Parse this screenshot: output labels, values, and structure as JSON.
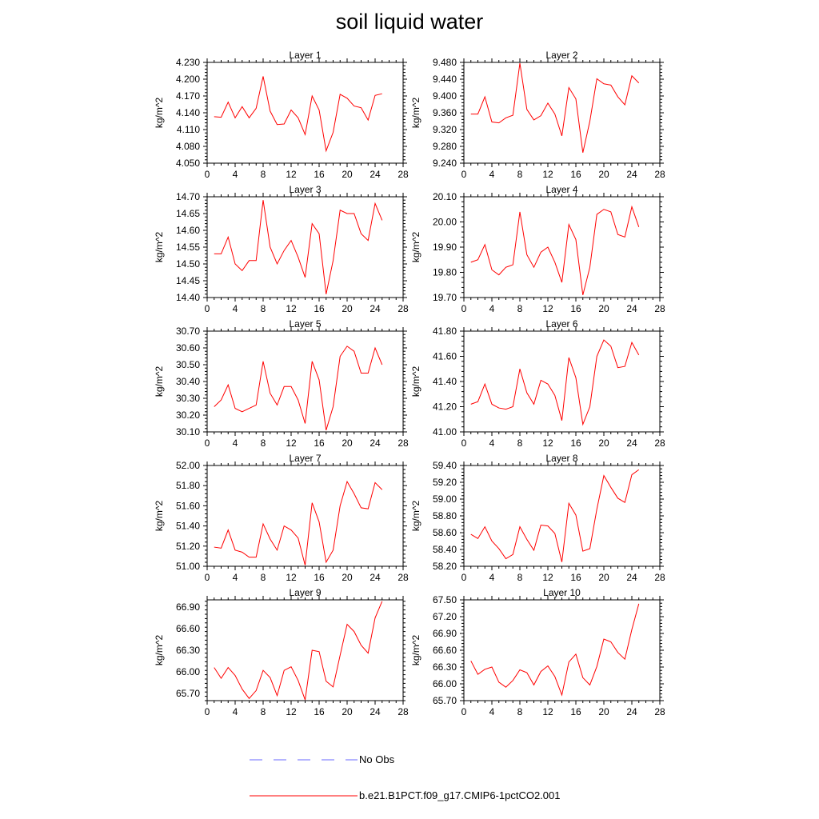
{
  "title": "soil liquid water",
  "legend": [
    {
      "label": "No Obs",
      "color": "#6a6aff",
      "style": "dashed"
    },
    {
      "label": "b.e21.B1PCT.f09_g17.CMIP6-1pctCO2.001",
      "color": "#ff0000",
      "style": "solid"
    }
  ],
  "chart_data": [
    {
      "type": "line",
      "title": "Layer 1",
      "ylabel": "kg/m^2",
      "xlim": [
        0,
        28
      ],
      "xticks": [
        0,
        4,
        8,
        12,
        16,
        20,
        24,
        28
      ],
      "ylim": [
        4.05,
        4.23
      ],
      "yticks": [
        "4.050",
        "4.080",
        "4.110",
        "4.140",
        "4.170",
        "4.200",
        "4.230"
      ],
      "series": [
        {
          "color": "#ff0000",
          "x": [
            1,
            2,
            3,
            4,
            5,
            6,
            7,
            8,
            9,
            10,
            11,
            12,
            13,
            14,
            15,
            16,
            17,
            18,
            19,
            20,
            21,
            22,
            23,
            24,
            25
          ],
          "y": [
            4.133,
            4.132,
            4.159,
            4.131,
            4.151,
            4.131,
            4.148,
            4.205,
            4.143,
            4.119,
            4.12,
            4.145,
            4.131,
            4.101,
            4.17,
            4.145,
            4.072,
            4.105,
            4.173,
            4.166,
            4.152,
            4.149,
            4.127,
            4.171,
            4.174
          ]
        }
      ]
    },
    {
      "type": "line",
      "title": "Layer 2",
      "ylabel": "kg/m^2",
      "xlim": [
        0,
        28
      ],
      "xticks": [
        0,
        4,
        8,
        12,
        16,
        20,
        24,
        28
      ],
      "ylim": [
        9.24,
        9.48
      ],
      "yticks": [
        "9.240",
        "9.280",
        "9.320",
        "9.360",
        "9.400",
        "9.440",
        "9.480"
      ],
      "series": [
        {
          "color": "#ff0000",
          "x": [
            1,
            2,
            3,
            4,
            5,
            6,
            7,
            8,
            9,
            10,
            11,
            12,
            13,
            14,
            15,
            16,
            17,
            18,
            19,
            20,
            21,
            22,
            23,
            24,
            25
          ],
          "y": [
            9.357,
            9.357,
            9.398,
            9.338,
            9.336,
            9.348,
            9.354,
            9.478,
            9.368,
            9.343,
            9.353,
            9.383,
            9.357,
            9.305,
            9.42,
            9.393,
            9.265,
            9.34,
            9.441,
            9.429,
            9.426,
            9.398,
            9.379,
            9.448,
            9.431
          ]
        }
      ]
    },
    {
      "type": "line",
      "title": "Layer 3",
      "ylabel": "kg/m^2",
      "xlim": [
        0,
        28
      ],
      "xticks": [
        0,
        4,
        8,
        12,
        16,
        20,
        24,
        28
      ],
      "ylim": [
        14.4,
        14.7
      ],
      "yticks": [
        "14.40",
        "14.45",
        "14.50",
        "14.55",
        "14.60",
        "14.65",
        "14.70"
      ],
      "series": [
        {
          "color": "#ff0000",
          "x": [
            1,
            2,
            3,
            4,
            5,
            6,
            7,
            8,
            9,
            10,
            11,
            12,
            13,
            14,
            15,
            16,
            17,
            18,
            19,
            20,
            21,
            22,
            23,
            24,
            25
          ],
          "y": [
            14.53,
            14.53,
            14.58,
            14.5,
            14.48,
            14.51,
            14.51,
            14.69,
            14.55,
            14.5,
            14.54,
            14.57,
            14.52,
            14.46,
            14.62,
            14.59,
            14.41,
            14.51,
            14.66,
            14.65,
            14.65,
            14.59,
            14.57,
            14.68,
            14.63
          ]
        }
      ]
    },
    {
      "type": "line",
      "title": "Layer 4",
      "ylabel": "kg/m^2",
      "xlim": [
        0,
        28
      ],
      "xticks": [
        0,
        4,
        8,
        12,
        16,
        20,
        24,
        28
      ],
      "ylim": [
        19.7,
        20.1
      ],
      "yticks": [
        "19.70",
        "19.80",
        "19.90",
        "20.00",
        "20.10"
      ],
      "series": [
        {
          "color": "#ff0000",
          "x": [
            1,
            2,
            3,
            4,
            5,
            6,
            7,
            8,
            9,
            10,
            11,
            12,
            13,
            14,
            15,
            16,
            17,
            18,
            19,
            20,
            21,
            22,
            23,
            24,
            25
          ],
          "y": [
            19.84,
            19.85,
            19.91,
            19.81,
            19.79,
            19.82,
            19.83,
            20.04,
            19.87,
            19.82,
            19.88,
            19.9,
            19.84,
            19.76,
            19.99,
            19.93,
            19.71,
            19.82,
            20.03,
            20.05,
            20.04,
            19.95,
            19.94,
            20.06,
            19.98
          ]
        }
      ]
    },
    {
      "type": "line",
      "title": "Layer 5",
      "ylabel": "kg/m^2",
      "xlim": [
        0,
        28
      ],
      "xticks": [
        0,
        4,
        8,
        12,
        16,
        20,
        24,
        28
      ],
      "ylim": [
        30.1,
        30.7
      ],
      "yticks": [
        "30.10",
        "30.20",
        "30.30",
        "30.40",
        "30.50",
        "30.60",
        "30.70"
      ],
      "series": [
        {
          "color": "#ff0000",
          "x": [
            1,
            2,
            3,
            4,
            5,
            6,
            7,
            8,
            9,
            10,
            11,
            12,
            13,
            14,
            15,
            16,
            17,
            18,
            19,
            20,
            21,
            22,
            23,
            24,
            25
          ],
          "y": [
            30.25,
            30.29,
            30.38,
            30.24,
            30.22,
            30.24,
            30.26,
            30.52,
            30.33,
            30.26,
            30.37,
            30.37,
            30.29,
            30.15,
            30.52,
            30.41,
            30.11,
            30.25,
            30.55,
            30.61,
            30.58,
            30.45,
            30.45,
            30.6,
            30.5
          ]
        }
      ]
    },
    {
      "type": "line",
      "title": "Layer 6",
      "ylabel": "kg/m^2",
      "xlim": [
        0,
        28
      ],
      "xticks": [
        0,
        4,
        8,
        12,
        16,
        20,
        24,
        28
      ],
      "ylim": [
        41.0,
        41.8
      ],
      "yticks": [
        "41.00",
        "41.20",
        "41.40",
        "41.60",
        "41.80"
      ],
      "series": [
        {
          "color": "#ff0000",
          "x": [
            1,
            2,
            3,
            4,
            5,
            6,
            7,
            8,
            9,
            10,
            11,
            12,
            13,
            14,
            15,
            16,
            17,
            18,
            19,
            20,
            21,
            22,
            23,
            24,
            25
          ],
          "y": [
            41.22,
            41.24,
            41.38,
            41.22,
            41.19,
            41.18,
            41.2,
            41.5,
            41.31,
            41.22,
            41.41,
            41.38,
            41.29,
            41.09,
            41.59,
            41.43,
            41.06,
            41.2,
            41.6,
            41.73,
            41.68,
            41.51,
            41.52,
            41.71,
            41.61
          ]
        }
      ]
    },
    {
      "type": "line",
      "title": "Layer 7",
      "ylabel": "kg/m^2",
      "xlim": [
        0,
        28
      ],
      "xticks": [
        0,
        4,
        8,
        12,
        16,
        20,
        24,
        28
      ],
      "ylim": [
        51.0,
        52.0
      ],
      "yticks": [
        "51.00",
        "51.20",
        "51.40",
        "51.60",
        "51.80",
        "52.00"
      ],
      "series": [
        {
          "color": "#ff0000",
          "x": [
            1,
            2,
            3,
            4,
            5,
            6,
            7,
            8,
            9,
            10,
            11,
            12,
            13,
            14,
            15,
            16,
            17,
            18,
            19,
            20,
            21,
            22,
            23,
            24,
            25
          ],
          "y": [
            51.19,
            51.18,
            51.36,
            51.16,
            51.14,
            51.09,
            51.09,
            51.42,
            51.27,
            51.16,
            51.4,
            51.36,
            51.28,
            51.01,
            51.63,
            51.44,
            51.04,
            51.16,
            51.6,
            51.84,
            51.72,
            51.58,
            51.57,
            51.83,
            51.76
          ]
        }
      ]
    },
    {
      "type": "line",
      "title": "Layer 8",
      "ylabel": "kg/m^2",
      "xlim": [
        0,
        28
      ],
      "xticks": [
        0,
        4,
        8,
        12,
        16,
        20,
        24,
        28
      ],
      "ylim": [
        58.2,
        59.4
      ],
      "yticks": [
        "58.20",
        "58.40",
        "58.60",
        "58.80",
        "59.00",
        "59.20",
        "59.40"
      ],
      "series": [
        {
          "color": "#ff0000",
          "x": [
            1,
            2,
            3,
            4,
            5,
            6,
            7,
            8,
            9,
            10,
            11,
            12,
            13,
            14,
            15,
            16,
            17,
            18,
            19,
            20,
            21,
            22,
            23,
            24,
            25
          ],
          "y": [
            58.58,
            58.53,
            58.67,
            58.5,
            58.41,
            58.29,
            58.34,
            58.67,
            58.52,
            58.39,
            58.69,
            58.68,
            58.59,
            58.25,
            58.95,
            58.81,
            58.38,
            58.41,
            58.88,
            59.28,
            59.14,
            59.01,
            58.96,
            59.29,
            59.35
          ]
        }
      ]
    },
    {
      "type": "line",
      "title": "Layer 9",
      "ylabel": "kg/m^2",
      "xlim": [
        0,
        28
      ],
      "xticks": [
        0,
        4,
        8,
        12,
        16,
        20,
        24,
        28
      ],
      "ylim": [
        65.6,
        67.0
      ],
      "yticks": [
        "65.70",
        "66.00",
        "66.30",
        "66.60",
        "66.90"
      ],
      "series": [
        {
          "color": "#ff0000",
          "x": [
            1,
            2,
            3,
            4,
            5,
            6,
            7,
            8,
            9,
            10,
            11,
            12,
            13,
            14,
            15,
            16,
            17,
            18,
            19,
            20,
            21,
            22,
            23,
            24,
            25
          ],
          "y": [
            66.06,
            65.91,
            66.06,
            65.95,
            65.76,
            65.63,
            65.74,
            66.02,
            65.92,
            65.67,
            66.02,
            66.07,
            65.88,
            65.61,
            66.3,
            66.28,
            65.87,
            65.79,
            66.23,
            66.66,
            66.56,
            66.37,
            66.26,
            66.75,
            66.98
          ]
        }
      ]
    },
    {
      "type": "line",
      "title": "Layer 10",
      "ylabel": "kg/m^2",
      "xlim": [
        0,
        28
      ],
      "xticks": [
        0,
        4,
        8,
        12,
        16,
        20,
        24,
        28
      ],
      "ylim": [
        65.7,
        67.5
      ],
      "yticks": [
        "65.70",
        "66.00",
        "66.30",
        "66.60",
        "66.90",
        "67.20",
        "67.50"
      ],
      "series": [
        {
          "color": "#ff0000",
          "x": [
            1,
            2,
            3,
            4,
            5,
            6,
            7,
            8,
            9,
            10,
            11,
            12,
            13,
            14,
            15,
            16,
            17,
            18,
            19,
            20,
            21,
            22,
            23,
            24,
            25
          ],
          "y": [
            66.41,
            66.17,
            66.26,
            66.3,
            66.03,
            65.94,
            66.06,
            66.25,
            66.2,
            65.98,
            66.22,
            66.32,
            66.13,
            65.8,
            66.39,
            66.53,
            66.11,
            65.98,
            66.31,
            66.8,
            66.75,
            66.56,
            66.44,
            66.97,
            67.43
          ]
        }
      ]
    }
  ]
}
